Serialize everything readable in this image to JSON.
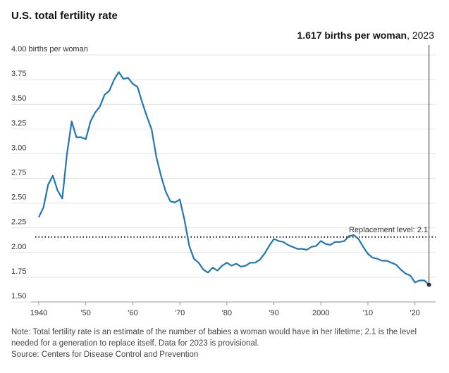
{
  "title": "U.S. total fertility rate",
  "chart_data": {
    "type": "line",
    "title": "U.S. total fertility rate",
    "y_unit_label": "births per woman",
    "ylim": [
      1.5,
      4.0
    ],
    "xlim": [
      1940,
      2023
    ],
    "y_ticks": [
      {
        "value": 4.0,
        "label": "4.00"
      },
      {
        "value": 3.75,
        "label": "3.75"
      },
      {
        "value": 3.5,
        "label": "3.50"
      },
      {
        "value": 3.25,
        "label": "3.25"
      },
      {
        "value": 3.0,
        "label": "3.00"
      },
      {
        "value": 2.75,
        "label": "2.75"
      },
      {
        "value": 2.5,
        "label": "2.50"
      },
      {
        "value": 2.25,
        "label": "2.25"
      },
      {
        "value": 2.0,
        "label": "2.00"
      },
      {
        "value": 1.75,
        "label": "1.75"
      },
      {
        "value": 1.5,
        "label": "1.50"
      }
    ],
    "x_ticks": [
      {
        "value": 1940,
        "label": "1940"
      },
      {
        "value": 1950,
        "label": "'50"
      },
      {
        "value": 1960,
        "label": "'60"
      },
      {
        "value": 1970,
        "label": "'70"
      },
      {
        "value": 1980,
        "label": "'80"
      },
      {
        "value": 1990,
        "label": "'90"
      },
      {
        "value": 2000,
        "label": "2000"
      },
      {
        "value": 2010,
        "label": "'10"
      },
      {
        "value": 2020,
        "label": "'20"
      }
    ],
    "reference_line": {
      "value": 2.1,
      "label": "Replacement level: 2.1"
    },
    "annotation": {
      "bold": "1.617 births per woman",
      "rest": ", 2023",
      "x": 2023
    },
    "grid": true,
    "colors": {
      "line": "#1f77b4",
      "grid": "#e3e3e3",
      "reference": "#111111",
      "marker": "#333333"
    },
    "series": [
      {
        "x": [
          1940,
          1941,
          1942,
          1943,
          1944,
          1945,
          1946,
          1947,
          1948,
          1949,
          1950,
          1951,
          1952,
          1953,
          1954,
          1955,
          1956,
          1957,
          1958,
          1959,
          1960,
          1961,
          1962,
          1963,
          1964,
          1965,
          1966,
          1967,
          1968,
          1969,
          1970,
          1971,
          1972,
          1973,
          1974,
          1975,
          1976,
          1977,
          1978,
          1979,
          1980,
          1981,
          1982,
          1983,
          1984,
          1985,
          1986,
          1987,
          1988,
          1989,
          1990,
          1991,
          1992,
          1993,
          1994,
          1995,
          1996,
          1997,
          1998,
          1999,
          2000,
          2001,
          2002,
          2003,
          2004,
          2005,
          2006,
          2007,
          2008,
          2009,
          2010,
          2011,
          2012,
          2013,
          2014,
          2015,
          2016,
          2017,
          2018,
          2019,
          2020,
          2021,
          2022,
          2023
        ],
        "y": [
          2.3,
          2.4,
          2.63,
          2.72,
          2.57,
          2.49,
          2.94,
          3.27,
          3.11,
          3.11,
          3.09,
          3.27,
          3.36,
          3.42,
          3.54,
          3.58,
          3.69,
          3.77,
          3.7,
          3.71,
          3.65,
          3.62,
          3.46,
          3.32,
          3.19,
          2.91,
          2.72,
          2.56,
          2.46,
          2.45,
          2.48,
          2.27,
          2.01,
          1.88,
          1.84,
          1.77,
          1.74,
          1.79,
          1.76,
          1.81,
          1.84,
          1.81,
          1.83,
          1.8,
          1.81,
          1.84,
          1.84,
          1.87,
          1.93,
          2.01,
          2.08,
          2.06,
          2.05,
          2.02,
          2.0,
          1.98,
          1.98,
          1.97,
          2.0,
          2.01,
          2.06,
          2.03,
          2.02,
          2.05,
          2.05,
          2.06,
          2.11,
          2.12,
          2.08,
          2.0,
          1.93,
          1.89,
          1.88,
          1.86,
          1.86,
          1.84,
          1.82,
          1.77,
          1.73,
          1.71,
          1.64,
          1.66,
          1.66,
          1.617
        ]
      }
    ]
  },
  "notes": {
    "note": "Note: Total fertility rate is an estimate of the number of babies a woman would have in her lifetime; 2.1 is the level needed for a generation to replace itself. Data for 2023 is provisional.",
    "source": "Source: Centers for Disease Control and Prevention"
  }
}
